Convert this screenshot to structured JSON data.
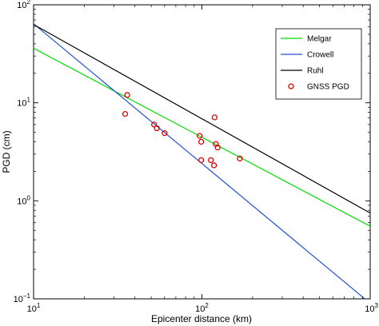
{
  "chart_data": {
    "type": "line",
    "xlabel": "Epicenter distance (km)",
    "ylabel": "PGD (cm)",
    "x_scale": "log",
    "y_scale": "log",
    "xlim": [
      10,
      1000
    ],
    "ylim": [
      0.1,
      100
    ],
    "x_ticks": [
      {
        "value": 10,
        "base": "10",
        "exp": "1"
      },
      {
        "value": 100,
        "base": "10",
        "exp": "2"
      },
      {
        "value": 1000,
        "base": "10",
        "exp": "3"
      }
    ],
    "y_ticks": [
      {
        "value": 0.1,
        "base": "10",
        "exp": "−1"
      },
      {
        "value": 1,
        "base": "10",
        "exp": "0"
      },
      {
        "value": 10,
        "base": "10",
        "exp": "1"
      },
      {
        "value": 100,
        "base": "10",
        "exp": "2"
      }
    ],
    "grid": false,
    "legend_position": "top-right",
    "series": [
      {
        "name": "Melgar",
        "kind": "line",
        "color": "#00dd00",
        "x": [
          10,
          1000
        ],
        "y": [
          36,
          0.55
        ]
      },
      {
        "name": "Crowell",
        "kind": "line",
        "color": "#2050d0",
        "x": [
          10,
          1000
        ],
        "y": [
          64,
          0.09
        ]
      },
      {
        "name": "Ruhl",
        "kind": "line",
        "color": "#000000",
        "x": [
          10,
          1000
        ],
        "y": [
          63,
          0.75
        ]
      },
      {
        "name": "GNSS PGD",
        "kind": "scatter",
        "color": "#e00000",
        "x": [
          36,
          35,
          52,
          54,
          60,
          97,
          99,
          99,
          113,
          119,
          121,
          124,
          118,
          168
        ],
        "y": [
          12,
          7.7,
          6.0,
          5.5,
          4.9,
          4.6,
          4.0,
          2.6,
          2.6,
          7.1,
          3.8,
          3.5,
          2.3,
          2.7
        ]
      }
    ]
  }
}
